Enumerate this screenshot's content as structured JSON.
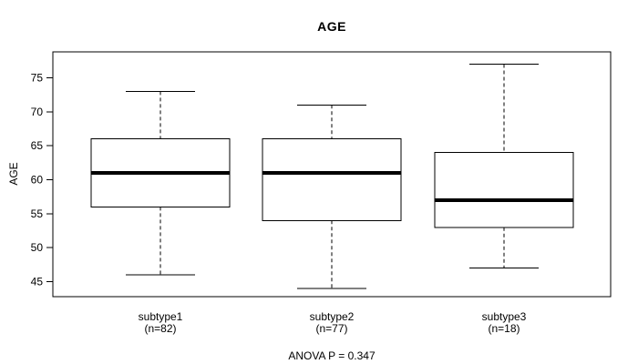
{
  "chart_data": {
    "type": "boxplot",
    "title": "AGE",
    "ylabel": "AGE",
    "xlabel": "",
    "ylim": [
      42.8,
      78.8
    ],
    "yticks": [
      45,
      50,
      55,
      60,
      65,
      70,
      75
    ],
    "grid": false,
    "legend": false,
    "annotation": "ANOVA P = 0.347",
    "groups": [
      {
        "label": "subtype1",
        "sublabel": "(n=82)",
        "n": 82,
        "whisker_low": 46,
        "q1": 56,
        "median": 61,
        "q3": 66,
        "whisker_high": 73
      },
      {
        "label": "subtype2",
        "sublabel": "(n=77)",
        "n": 77,
        "whisker_low": 44,
        "q1": 54,
        "median": 61,
        "q3": 66,
        "whisker_high": 71
      },
      {
        "label": "subtype3",
        "sublabel": "(n=18)",
        "n": 18,
        "whisker_low": 47,
        "q1": 53,
        "median": 57,
        "q3": 64,
        "whisker_high": 77
      }
    ],
    "colors": {
      "line": "#000000",
      "box_fill": "#ffffff",
      "background": "#ffffff"
    }
  }
}
